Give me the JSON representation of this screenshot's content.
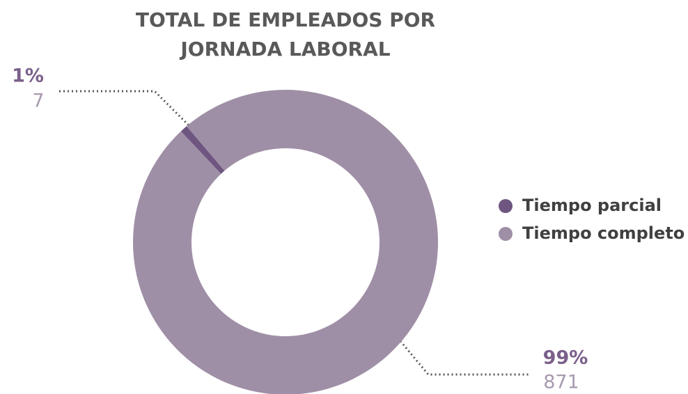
{
  "chart_data": {
    "type": "pie",
    "title": [
      "TOTAL DE EMPLEADOS POR",
      "JORNADA LABORAL"
    ],
    "categories": [
      "Tiempo parcial",
      "Tiempo completo"
    ],
    "values": [
      7,
      871
    ],
    "percent_labels": [
      "1%",
      "99%"
    ],
    "colors": [
      "#6e5681",
      "#9f8fa6"
    ],
    "donut": true,
    "legend": "right"
  }
}
